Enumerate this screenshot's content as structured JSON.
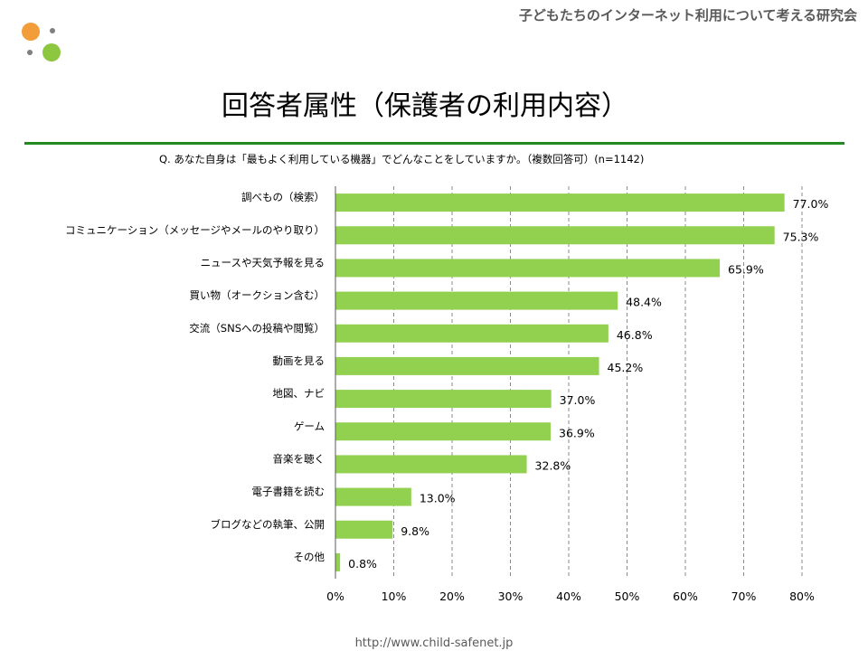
{
  "header": {
    "org_name": "子どもたちのインターネット利用について考える研究会",
    "logo_colors": [
      "#f39c3a",
      "#8dc63f",
      "#7f7f7f"
    ]
  },
  "title": "回答者属性（保護者の利用内容）",
  "question": "Q.  あなた自身は「最もよく利用している機器」でどんなことをしていますか。（複数回答可）(n=1142)",
  "footer": {
    "url": "http://www.child-safenet.jp"
  },
  "colors": {
    "bar": "#92d050",
    "rule": "#218a21",
    "grid": "#7f7f7f"
  },
  "chart_data": {
    "type": "bar",
    "orientation": "horizontal",
    "title": "回答者属性（保護者の利用内容）",
    "categories": [
      "調べもの（検索）",
      "コミュニケーション（メッセージやメールのやり取り）",
      "ニュースや天気予報を見る",
      "買い物（オークション含む）",
      "交流（SNSへの投稿や閲覧）",
      "動画を見る",
      "地図、ナビ",
      "ゲーム",
      "音楽を聴く",
      "電子書籍を読む",
      "ブログなどの執筆、公開",
      "その他"
    ],
    "values": [
      77.0,
      75.3,
      65.9,
      48.4,
      46.8,
      45.2,
      37.0,
      36.9,
      32.8,
      13.0,
      9.8,
      0.8
    ],
    "value_labels": [
      "77.0%",
      "75.3%",
      "65.9%",
      "48.4%",
      "46.8%",
      "45.2%",
      "37.0%",
      "36.9%",
      "32.8%",
      "13.0%",
      "9.8%",
      "0.8%"
    ],
    "xlim": [
      0,
      80
    ],
    "x_ticks": [
      0,
      10,
      20,
      30,
      40,
      50,
      60,
      70,
      80
    ],
    "x_tick_labels": [
      "0%",
      "10%",
      "20%",
      "30%",
      "40%",
      "50%",
      "60%",
      "70%",
      "80%"
    ],
    "grid": "vertical dashed",
    "xlabel": "",
    "ylabel": ""
  }
}
